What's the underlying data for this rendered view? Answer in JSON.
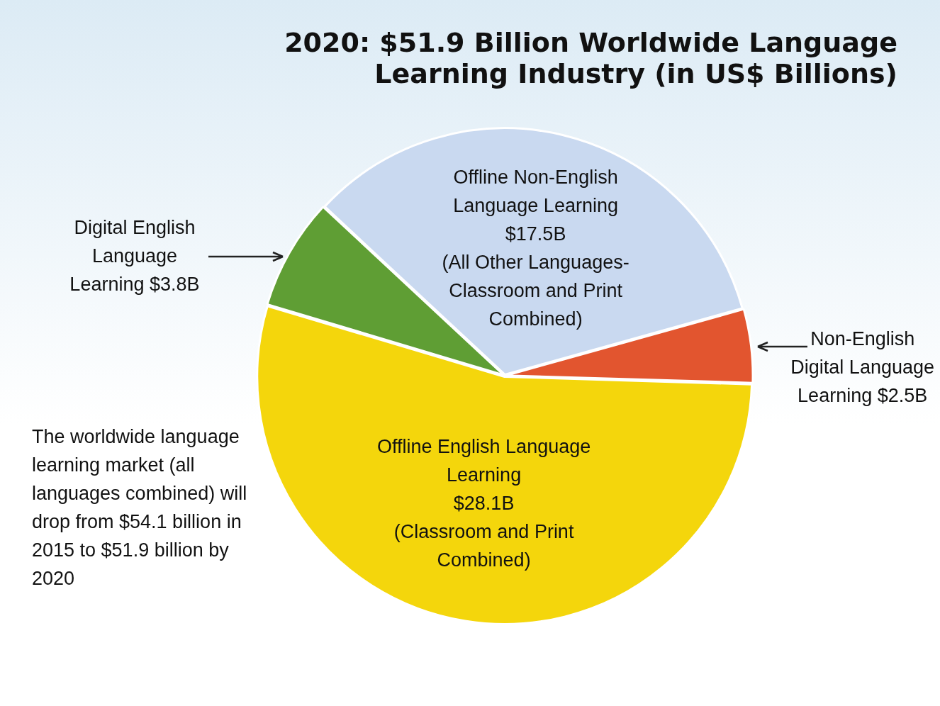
{
  "chart_data": {
    "type": "pie",
    "title": "2020: $51.9 Billion Worldwide Language Learning Industry (in US$ Billions)",
    "categories": [
      "Offline Non-English Language Learning (All Other Languages-Classroom and Print Combined)",
      "Non-English Digital Language Learning",
      "Offline English Language Learning (Classroom and Print Combined)",
      "Digital English Language Learning"
    ],
    "values": [
      17.5,
      2.5,
      28.1,
      3.8
    ],
    "value_labels": [
      "$17.5B",
      "$2.5B",
      "$28.1B",
      "$3.8B"
    ],
    "colors": [
      "#c9d9f0",
      "#e2552f",
      "#f4d60c",
      "#5f9e34"
    ],
    "legend": false,
    "annotations": [
      "The worldwide language learning market (all languages combined) will drop from  $54.1 billion in 2015 to $51.9 billion by 2020"
    ]
  }
}
